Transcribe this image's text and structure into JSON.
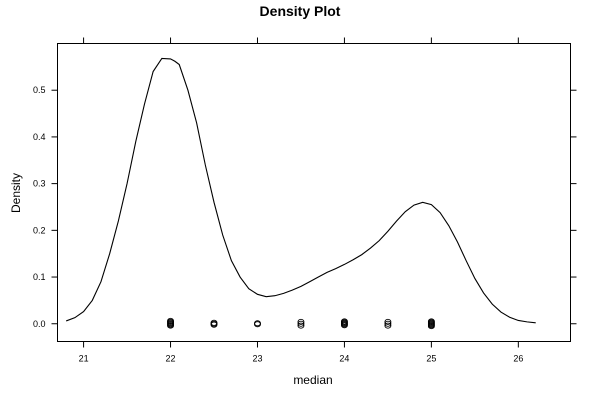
{
  "chart_data": {
    "type": "line",
    "title": "Density Plot",
    "xlabel": "median",
    "ylabel": "Density",
    "xlim": [
      20.7,
      26.6
    ],
    "ylim": [
      -0.038,
      0.6
    ],
    "x_ticks": [
      21,
      22,
      23,
      24,
      25,
      26
    ],
    "y_ticks": [
      0.0,
      0.1,
      0.2,
      0.3,
      0.4,
      0.5
    ],
    "y_tick_labels": [
      "0.0",
      "0.1",
      "0.2",
      "0.3",
      "0.4",
      "0.5"
    ],
    "grid": false,
    "series": [
      {
        "values": [
          [
            20.8,
            0.006
          ],
          [
            20.9,
            0.013
          ],
          [
            21.0,
            0.026
          ],
          [
            21.1,
            0.05
          ],
          [
            21.2,
            0.09
          ],
          [
            21.3,
            0.15
          ],
          [
            21.4,
            0.22
          ],
          [
            21.5,
            0.3
          ],
          [
            21.6,
            0.39
          ],
          [
            21.7,
            0.47
          ],
          [
            21.8,
            0.54
          ],
          [
            21.9,
            0.568
          ],
          [
            22.0,
            0.567
          ],
          [
            22.05,
            0.562
          ],
          [
            22.1,
            0.555
          ],
          [
            22.2,
            0.5
          ],
          [
            22.3,
            0.43
          ],
          [
            22.4,
            0.34
          ],
          [
            22.5,
            0.26
          ],
          [
            22.6,
            0.19
          ],
          [
            22.7,
            0.135
          ],
          [
            22.8,
            0.1
          ],
          [
            22.9,
            0.075
          ],
          [
            23.0,
            0.063
          ],
          [
            23.1,
            0.058
          ],
          [
            23.2,
            0.06
          ],
          [
            23.3,
            0.065
          ],
          [
            23.4,
            0.072
          ],
          [
            23.5,
            0.08
          ],
          [
            23.6,
            0.09
          ],
          [
            23.7,
            0.1
          ],
          [
            23.8,
            0.11
          ],
          [
            23.9,
            0.118
          ],
          [
            24.0,
            0.127
          ],
          [
            24.1,
            0.137
          ],
          [
            24.2,
            0.148
          ],
          [
            24.3,
            0.162
          ],
          [
            24.4,
            0.178
          ],
          [
            24.5,
            0.198
          ],
          [
            24.6,
            0.22
          ],
          [
            24.7,
            0.24
          ],
          [
            24.8,
            0.254
          ],
          [
            24.9,
            0.26
          ],
          [
            25.0,
            0.255
          ],
          [
            25.1,
            0.238
          ],
          [
            25.2,
            0.21
          ],
          [
            25.3,
            0.175
          ],
          [
            25.4,
            0.135
          ],
          [
            25.5,
            0.097
          ],
          [
            25.6,
            0.066
          ],
          [
            25.7,
            0.042
          ],
          [
            25.8,
            0.025
          ],
          [
            25.9,
            0.014
          ],
          [
            26.0,
            0.007
          ],
          [
            26.1,
            0.004
          ],
          [
            26.2,
            0.002
          ]
        ]
      }
    ],
    "rug": [
      {
        "x": 22.0,
        "y": 0.006
      },
      {
        "x": 22.0,
        "y": 0.004
      },
      {
        "x": 22.0,
        "y": 0.002
      },
      {
        "x": 22.0,
        "y": 0.0
      },
      {
        "x": 22.0,
        "y": -0.002
      },
      {
        "x": 22.0,
        "y": -0.004
      },
      {
        "x": 22.5,
        "y": 0.002
      },
      {
        "x": 22.5,
        "y": 0.0
      },
      {
        "x": 22.5,
        "y": -0.002
      },
      {
        "x": 23.0,
        "y": 0.001
      },
      {
        "x": 23.0,
        "y": -0.001
      },
      {
        "x": 23.5,
        "y": 0.004
      },
      {
        "x": 23.5,
        "y": 0.0
      },
      {
        "x": 23.5,
        "y": -0.004
      },
      {
        "x": 24.0,
        "y": 0.005
      },
      {
        "x": 24.0,
        "y": 0.003
      },
      {
        "x": 24.0,
        "y": 0.001
      },
      {
        "x": 24.0,
        "y": -0.001
      },
      {
        "x": 24.0,
        "y": -0.003
      },
      {
        "x": 24.5,
        "y": 0.004
      },
      {
        "x": 24.5,
        "y": 0.0
      },
      {
        "x": 24.5,
        "y": -0.004
      },
      {
        "x": 25.0,
        "y": 0.005
      },
      {
        "x": 25.0,
        "y": 0.003
      },
      {
        "x": 25.0,
        "y": 0.001
      },
      {
        "x": 25.0,
        "y": -0.001
      },
      {
        "x": 25.0,
        "y": -0.003
      },
      {
        "x": 25.0,
        "y": -0.005
      }
    ]
  }
}
